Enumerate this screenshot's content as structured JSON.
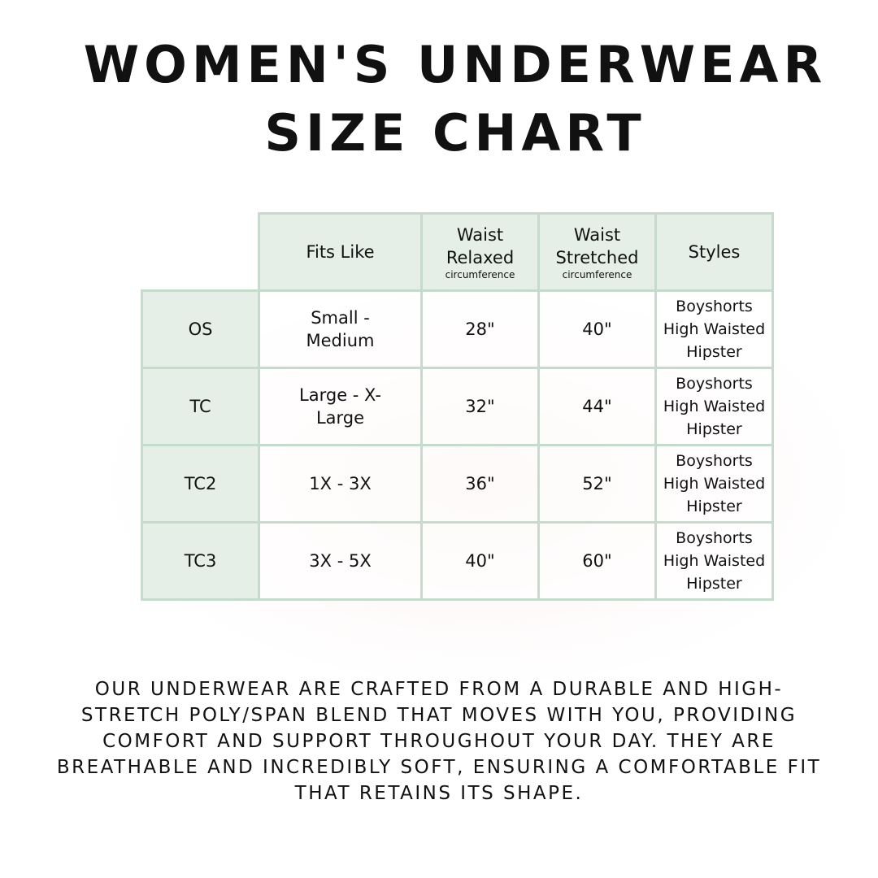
{
  "title": {
    "line1": "WOMEN'S UNDERWEAR",
    "line2": "SIZE CHART"
  },
  "table": {
    "headers": [
      {
        "label": "Fits Like",
        "sub": ""
      },
      {
        "label": "Waist Relaxed",
        "sub": "circumference"
      },
      {
        "label": "Waist Stretched",
        "sub": "circumference"
      },
      {
        "label": "Styles",
        "sub": ""
      }
    ],
    "rows": [
      {
        "size": "OS",
        "fits": "Small - Medium",
        "relaxed": "28\"",
        "stretched": "40\"",
        "styles": [
          "Boyshorts",
          "High Waisted",
          "Hipster"
        ]
      },
      {
        "size": "TC",
        "fits": "Large - X-Large",
        "relaxed": "32\"",
        "stretched": "44\"",
        "styles": [
          "Boyshorts",
          "High Waisted",
          "Hipster"
        ]
      },
      {
        "size": "TC2",
        "fits": "1X - 3X",
        "relaxed": "36\"",
        "stretched": "52\"",
        "styles": [
          "Boyshorts",
          "High Waisted",
          "Hipster"
        ]
      },
      {
        "size": "TC3",
        "fits": "3X - 5X",
        "relaxed": "40\"",
        "stretched": "60\"",
        "styles": [
          "Boyshorts",
          "High Waisted",
          "Hipster"
        ]
      }
    ]
  },
  "description": "Our underwear are crafted from a durable and high-stretch poly/span blend that moves with you, providing comfort and support throughout your day. They are breathable and incredibly soft, ensuring a comfortable fit that retains its shape.",
  "colors": {
    "header_fill": "#e5efe8",
    "border": "#c3dccc"
  }
}
